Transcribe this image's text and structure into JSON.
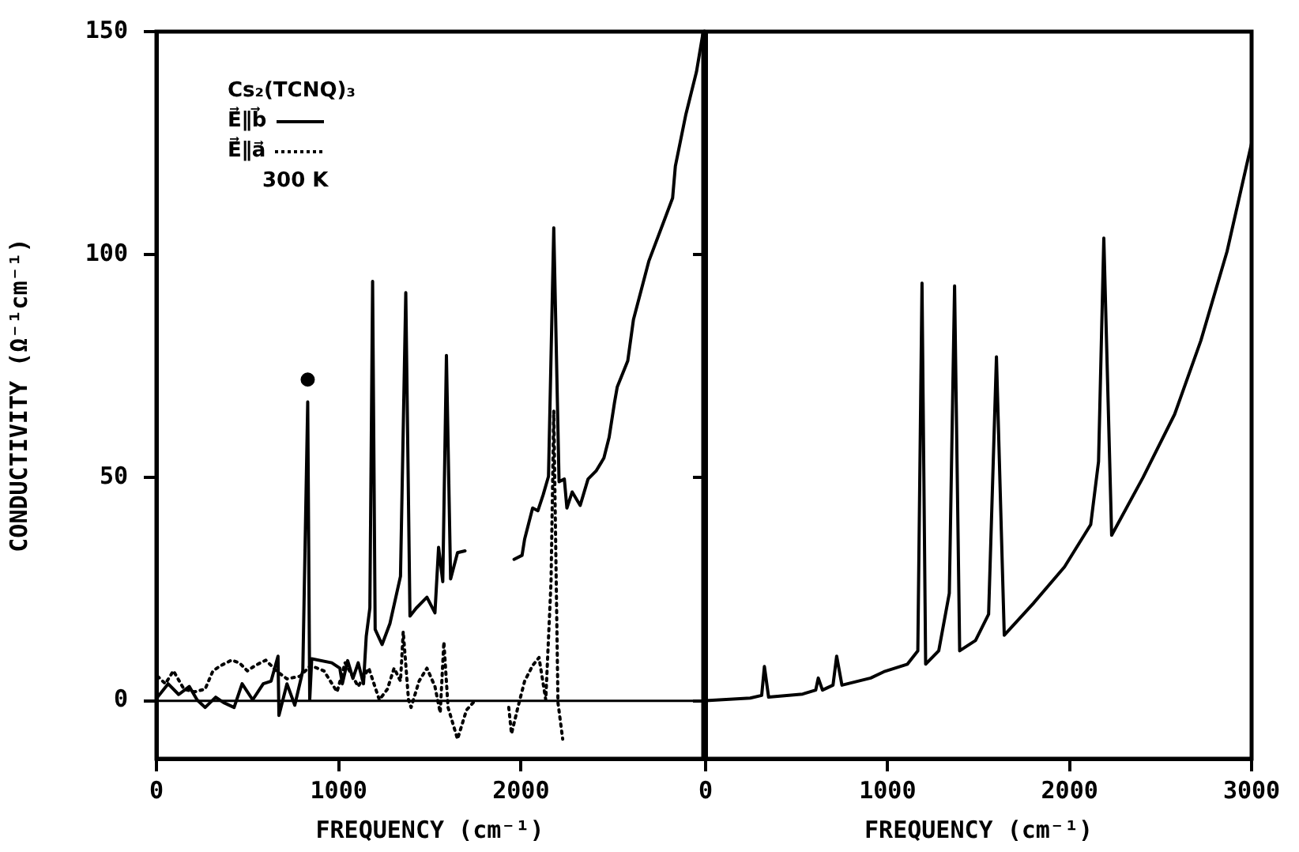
{
  "chart_data": [
    {
      "type": "line",
      "xlabel": "FREQUENCY (cm⁻¹)",
      "ylabel": "CONDUCTIVITY (Ω⁻¹cm⁻¹)",
      "legend_title": "Cs₂(TCNQ)₃",
      "legend": "top left",
      "annotations": [
        "300 K"
      ],
      "xlim": [
        0,
        3000
      ],
      "xticks": [
        0,
        1000,
        2000
      ],
      "ylim": [
        -13,
        150
      ],
      "yticks": [
        0,
        50,
        100,
        150
      ],
      "grid": false,
      "marker": "none",
      "ref_lines": [
        {
          "axis": "y",
          "value": 0,
          "color": "#000000"
        }
      ],
      "series": [
        {
          "name": "E⃗∥b⃗",
          "color": "#000000",
          "line_style": "solid",
          "x": [
            6,
            64,
            122,
            180,
            223,
            267,
            325,
            368,
            426,
            470,
            528,
            586,
            629,
            667,
            672,
            716,
            759,
            803,
            830,
            841,
            852,
            962,
            1006,
            1020,
            1049,
            1078,
            1107,
            1136,
            1151,
            1171,
            1186,
            1200,
            1238,
            1281,
            1339,
            1368,
            1391,
            1426,
            1484,
            1528,
            1548,
            1571,
            1591,
            1614,
            1652,
            1693,
            1800,
            1962,
            2006,
            2020,
            2064,
            2093,
            2122,
            2151,
            2180,
            2209,
            2238,
            2252,
            2281,
            2325,
            2368,
            2412,
            2455,
            2484,
            2513,
            2528,
            2586,
            2617,
            2702,
            2789,
            2832,
            2847,
            2905,
            2963,
            3000
          ],
          "values": [
            0.8,
            3.8,
            1.4,
            3.2,
            0.2,
            -1.5,
            0.8,
            -0.4,
            -1.5,
            3.8,
            0.2,
            3.8,
            4.4,
            10,
            -3.3,
            3.8,
            -1,
            6.7,
            67,
            0.2,
            9.4,
            8.5,
            7.3,
            3.8,
            9,
            5,
            8.5,
            3.8,
            14.4,
            20.8,
            94,
            16,
            12.6,
            17.3,
            27.9,
            91.5,
            19,
            20.8,
            23.2,
            19.7,
            34.4,
            26.7,
            77.4,
            27.3,
            33.2,
            33.6,
            null,
            31.7,
            32.6,
            36.2,
            43.2,
            42.6,
            46.2,
            50.3,
            106,
            49.1,
            49.7,
            43.2,
            46.8,
            43.8,
            49.7,
            51.5,
            54.4,
            59.1,
            66.8,
            70.3,
            76.2,
            85.4,
            98.6,
            108,
            112.7,
            119.8,
            131.5,
            141,
            150
          ]
        },
        {
          "name": "E⃗∥a⃗",
          "color": "#000000",
          "line_style": "dotted",
          "x": [
            6,
            49,
            93,
            151,
            209,
            267,
            310,
            354,
            412,
            455,
            499,
            542,
            600,
            658,
            716,
            788,
            846,
            919,
            991,
            1035,
            1107,
            1165,
            1223,
            1267,
            1304,
            1339,
            1354,
            1383,
            1397,
            1441,
            1484,
            1528,
            1557,
            1577,
            1600,
            1652,
            1701,
            1751,
            1850,
            1933,
            1948,
            1983,
            2020,
            2064,
            2099,
            2136,
            2165,
            2180,
            2203,
            2229
          ],
          "values": [
            5.5,
            3.8,
            6.7,
            2.6,
            2,
            2.6,
            6.7,
            7.9,
            9.1,
            8.5,
            6.7,
            7.9,
            9.1,
            6.7,
            4.9,
            5.5,
            7.9,
            6.7,
            2,
            8.5,
            3.2,
            7.3,
            0.2,
            2.6,
            7.3,
            4.4,
            15.5,
            0.2,
            -1.5,
            4.4,
            7.3,
            3.2,
            -2.7,
            13.2,
            -1.5,
            -8.6,
            -2.1,
            0.2,
            null,
            -1.5,
            -7.4,
            -1.5,
            4.4,
            7.9,
            9.7,
            0.2,
            26.7,
            65,
            -0.4,
            -8.6
          ]
        },
        {
          "type": "scatter",
          "marker": "circle",
          "color": "#000000",
          "x": [
            830
          ],
          "values": [
            72
          ]
        }
      ]
    },
    {
      "type": "line",
      "xlabel": "FREQUENCY (cm⁻¹)",
      "tick_labels": "x",
      "xlim": [
        0,
        3000
      ],
      "xticks": [
        0,
        1000,
        2000,
        3000
      ],
      "ylim": [
        -13,
        150
      ],
      "yticks": [
        0,
        50,
        100,
        150
      ],
      "grid": false,
      "marker": "none",
      "series": [
        {
          "color": "#000000",
          "x": [
            0,
            245,
            308,
            323,
            346,
            533,
            605,
            619,
            642,
            700,
            720,
            749,
            907,
            979,
            1109,
            1166,
            1189,
            1209,
            1281,
            1339,
            1368,
            1396,
            1483,
            1555,
            1598,
            1641,
            1800,
            1972,
            2116,
            2159,
            2188,
            2231,
            2404,
            2577,
            2721,
            2865,
            3000
          ],
          "values": [
            0,
            0.6,
            1.2,
            7.7,
            0.8,
            1.5,
            2.4,
            5.1,
            2.4,
            3.5,
            10,
            3.5,
            5.1,
            6.5,
            8.2,
            11.2,
            93.6,
            8.2,
            11.2,
            24.1,
            93,
            11.2,
            13.5,
            19.4,
            77.1,
            14.7,
            21.8,
            30,
            39.5,
            53.6,
            103.7,
            37.1,
            50.1,
            64.2,
            80.7,
            100.7,
            125
          ]
        }
      ]
    }
  ]
}
